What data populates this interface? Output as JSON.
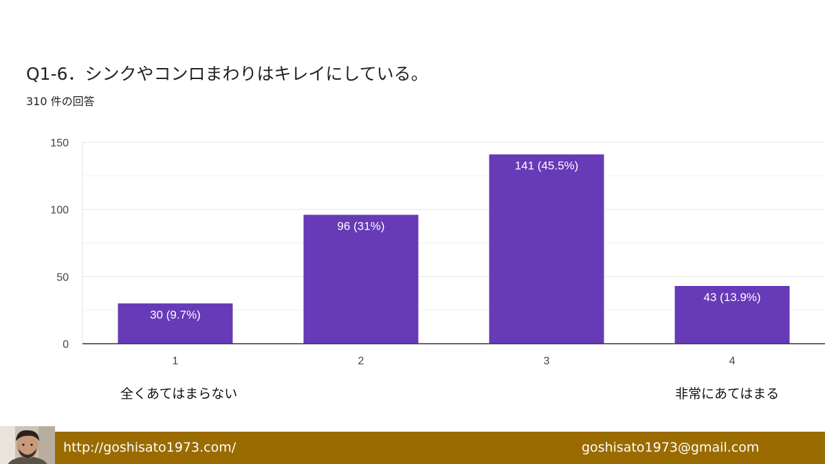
{
  "colors": {
    "bar": "#673ab7",
    "footer": "#9a6b00"
  },
  "chart_data": {
    "type": "bar",
    "title": "Q1-6．シンクやコンロまわりはキレイにしている。",
    "subtitle": "310 件の回答",
    "categories": [
      "1",
      "2",
      "3",
      "4"
    ],
    "values": [
      30,
      96,
      141,
      43
    ],
    "data_labels": [
      "30 (9.7%)",
      "96 (31%)",
      "141 (45.5%)",
      "43 (13.9%)"
    ],
    "yticks": [
      "0",
      "50",
      "100",
      "150"
    ],
    "ylim": [
      0,
      150
    ],
    "grid": true,
    "annotations": {
      "left": "全くあてはまらない",
      "right": "非常にあてはまる"
    }
  },
  "footer": {
    "url": "http://goshisato1973.com/",
    "email": "goshisato1973@gmail.com",
    "avatar_icon": "person-photo-icon"
  }
}
